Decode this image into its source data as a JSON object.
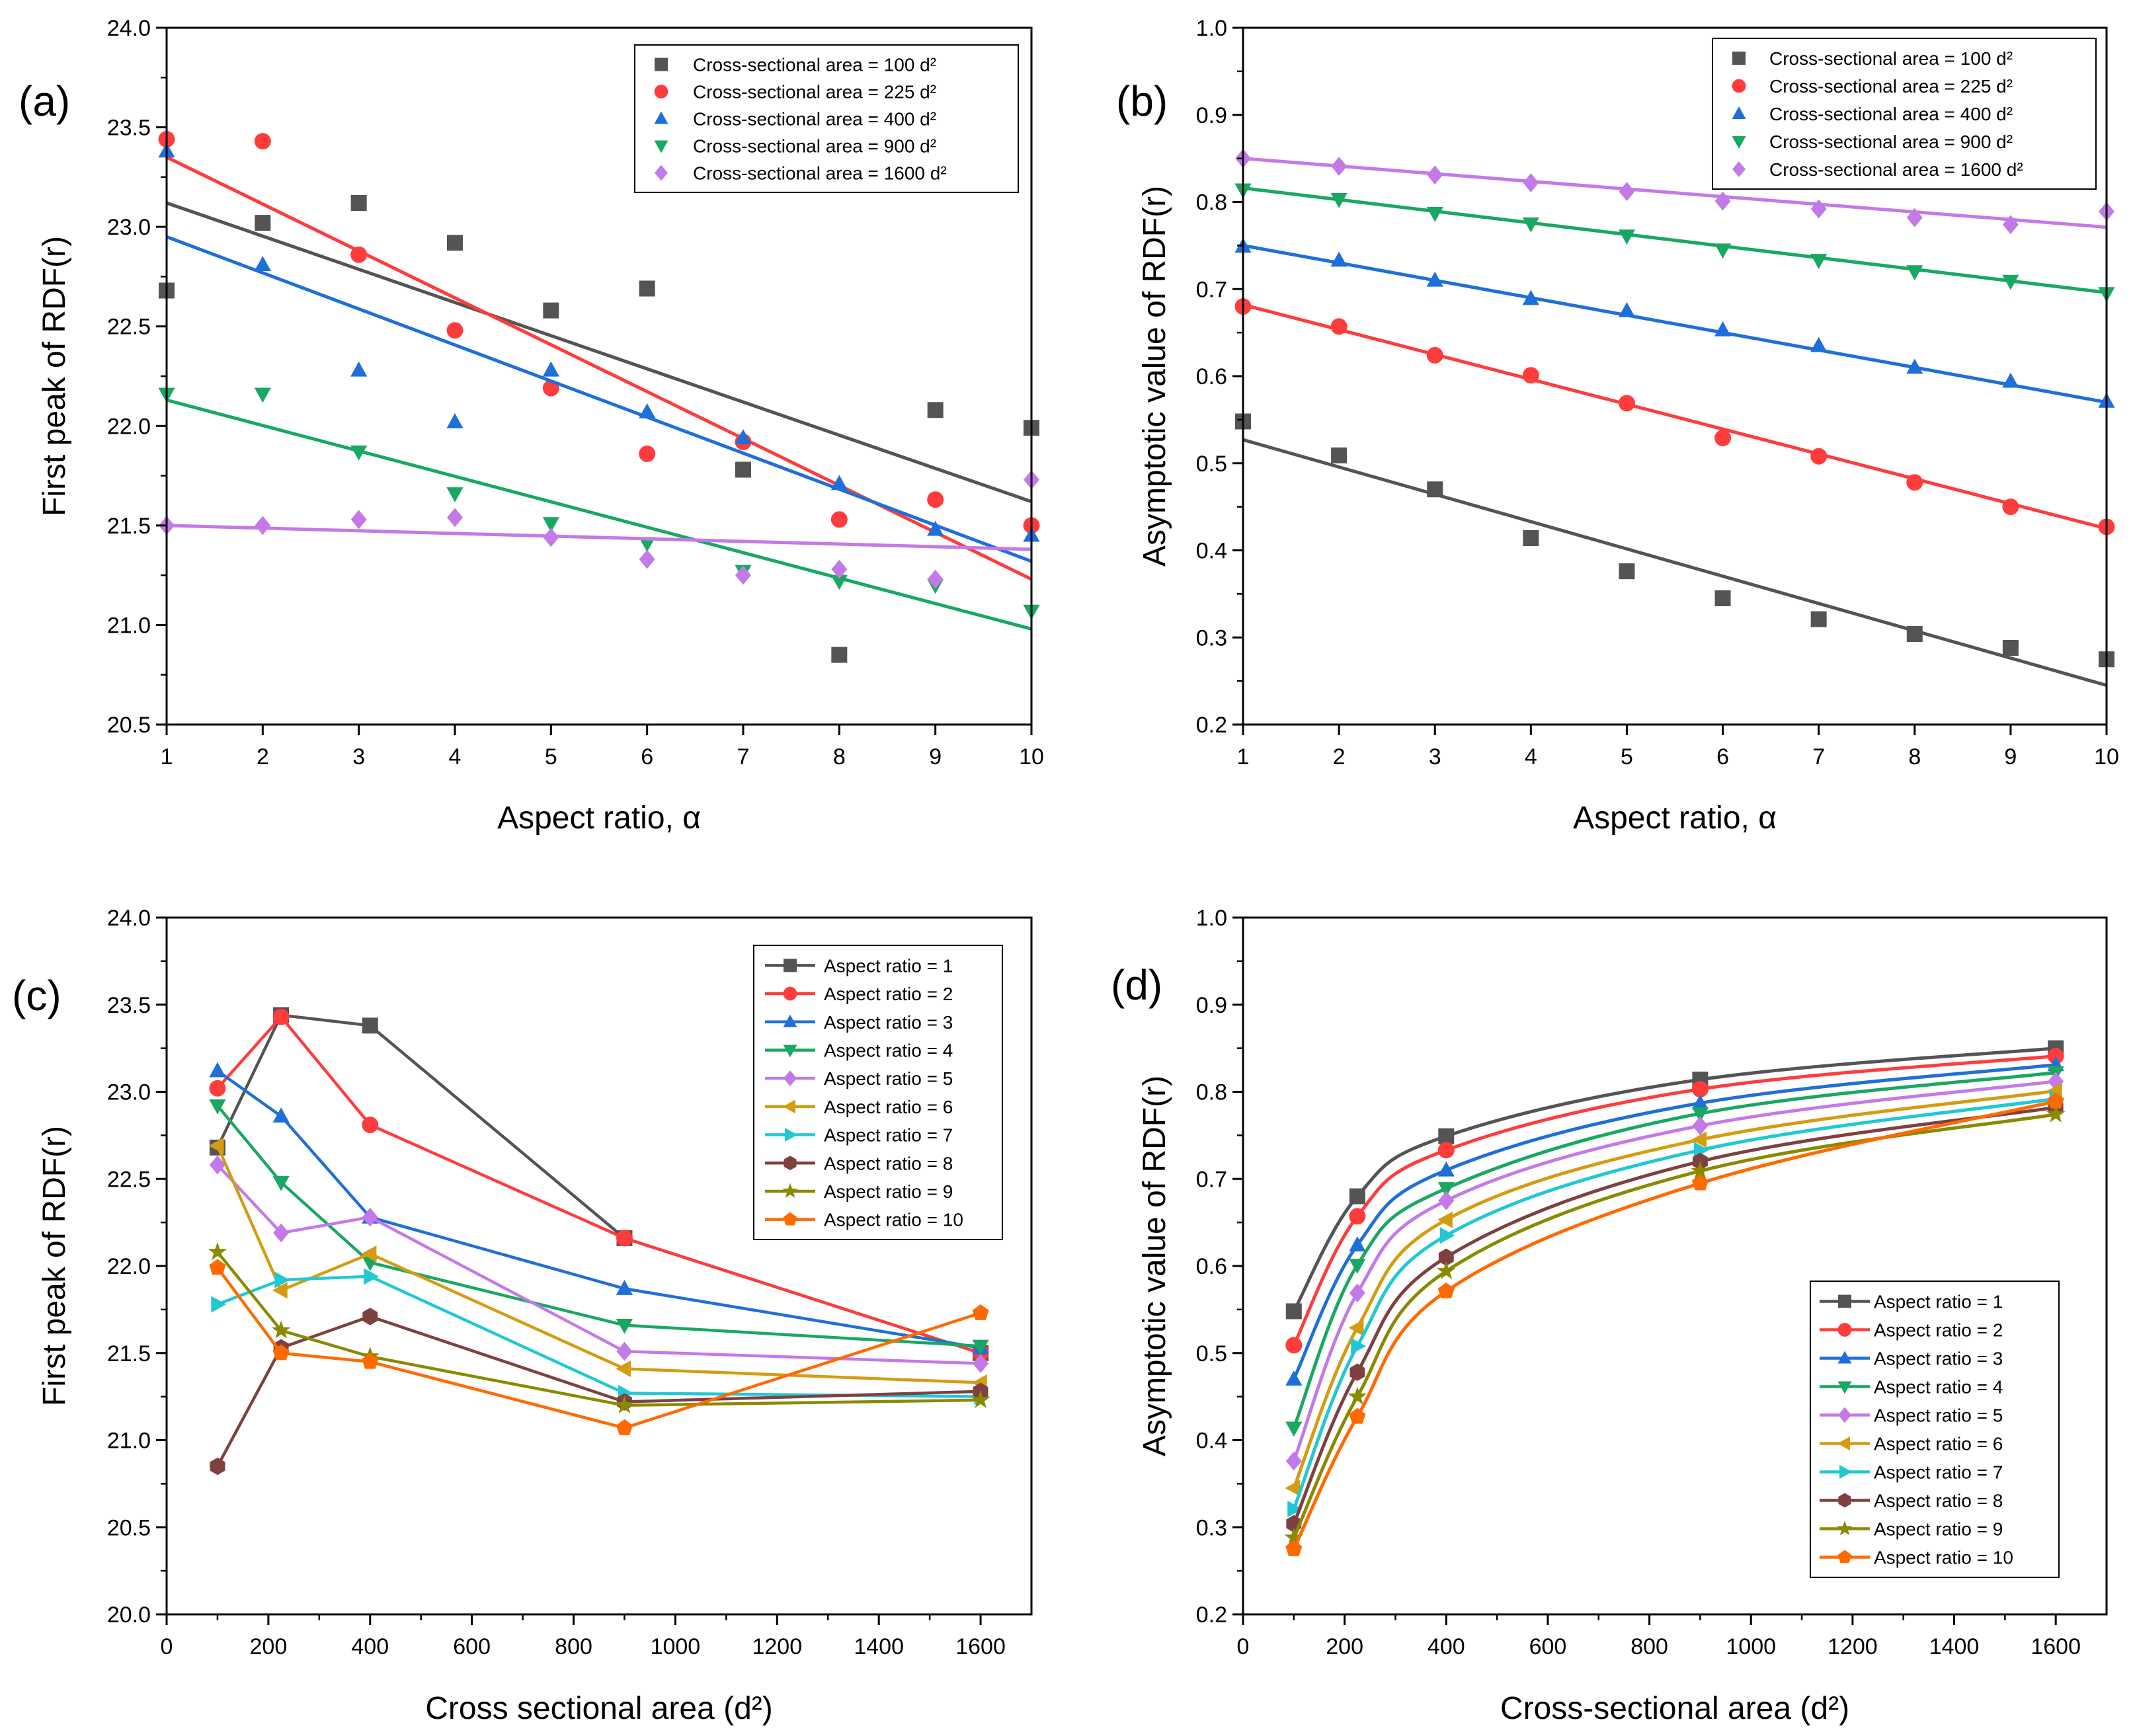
{
  "figure_colors": [
    "#545454",
    "#ff3c3c",
    "#1f6fd9",
    "#19a862",
    "#c479e8",
    "#d49c12",
    "#20c8d4",
    "#7f4040",
    "#8a8a00",
    "#ff6a00"
  ],
  "chart_data": [
    {
      "panel": "(a)",
      "type": "scatter",
      "xlabel": "Aspect ratio, α",
      "ylabel": "First peak of RDF(r)",
      "xlim": [
        1,
        10
      ],
      "ylim": [
        20.5,
        24.0
      ],
      "xticks": [
        "1",
        "2",
        "3",
        "4",
        "5",
        "6",
        "7",
        "8",
        "9",
        "10"
      ],
      "yticks": [
        "20.5",
        "21.0",
        "21.5",
        "22.0",
        "22.5",
        "23.0",
        "23.5",
        "24.0"
      ],
      "legend": "top-right",
      "x": [
        1,
        2,
        3,
        4,
        5,
        6,
        7,
        8,
        9,
        10
      ],
      "series": [
        {
          "name": "Cross-sectional area = 100 d²",
          "marker": "square",
          "values": [
            22.68,
            23.02,
            23.12,
            22.92,
            22.58,
            22.69,
            21.78,
            20.85,
            22.08,
            21.99
          ],
          "fit": [
            23.12,
            21.62
          ]
        },
        {
          "name": "Cross-sectional area = 225 d²",
          "marker": "circle",
          "values": [
            23.44,
            23.43,
            22.86,
            22.48,
            22.19,
            21.86,
            21.92,
            21.53,
            21.63,
            21.5
          ],
          "fit": [
            23.35,
            21.23
          ]
        },
        {
          "name": "Cross-sectional area = 400 d²",
          "marker": "triangle-up",
          "values": [
            23.38,
            22.81,
            22.28,
            22.02,
            22.28,
            22.07,
            21.94,
            21.71,
            21.48,
            21.45
          ],
          "fit": [
            22.95,
            21.32
          ]
        },
        {
          "name": "Cross-sectional area = 900 d²",
          "marker": "triangle-down",
          "values": [
            22.16,
            22.16,
            21.87,
            21.66,
            21.51,
            21.41,
            21.27,
            21.22,
            21.2,
            21.07
          ],
          "fit": [
            22.13,
            20.98
          ]
        },
        {
          "name": "Cross-sectional area = 1600 d²",
          "marker": "diamond",
          "values": [
            21.5,
            21.5,
            21.53,
            21.54,
            21.44,
            21.33,
            21.25,
            21.28,
            21.23,
            21.73
          ],
          "fit": [
            21.5,
            21.38
          ]
        }
      ]
    },
    {
      "panel": "(b)",
      "type": "scatter",
      "xlabel": "Aspect ratio, α",
      "ylabel": "Asymptotic value of RDF(r)",
      "xlim": [
        1,
        10
      ],
      "ylim": [
        0.2,
        1.0
      ],
      "xticks": [
        "1",
        "2",
        "3",
        "4",
        "5",
        "6",
        "7",
        "8",
        "9",
        "10"
      ],
      "yticks": [
        "0.2",
        "0.3",
        "0.4",
        "0.5",
        "0.6",
        "0.7",
        "0.8",
        "0.9",
        "1.0"
      ],
      "legend": "top-right",
      "x": [
        1,
        2,
        3,
        4,
        5,
        6,
        7,
        8,
        9,
        10
      ],
      "series": [
        {
          "name": "Cross-sectional area = 100 d²",
          "marker": "square",
          "values": [
            0.548,
            0.509,
            0.47,
            0.414,
            0.376,
            0.345,
            0.321,
            0.304,
            0.288,
            0.275
          ],
          "fit": [
            0.527,
            0.245
          ]
        },
        {
          "name": "Cross-sectional area = 225 d²",
          "marker": "circle",
          "values": [
            0.68,
            0.657,
            0.624,
            0.601,
            0.569,
            0.529,
            0.508,
            0.478,
            0.45,
            0.427
          ],
          "fit": [
            0.682,
            0.425
          ]
        },
        {
          "name": "Cross-sectional area = 400 d²",
          "marker": "triangle-up",
          "values": [
            0.749,
            0.733,
            0.71,
            0.689,
            0.675,
            0.653,
            0.635,
            0.61,
            0.594,
            0.571
          ],
          "fit": [
            0.75,
            0.57
          ]
        },
        {
          "name": "Cross-sectional area = 900 d²",
          "marker": "triangle-down",
          "values": [
            0.814,
            0.803,
            0.787,
            0.775,
            0.761,
            0.745,
            0.733,
            0.72,
            0.709,
            0.695
          ],
          "fit": [
            0.816,
            0.696
          ]
        },
        {
          "name": "Cross-sectional area = 1600 d²",
          "marker": "diamond",
          "values": [
            0.85,
            0.841,
            0.831,
            0.822,
            0.812,
            0.801,
            0.792,
            0.782,
            0.774,
            0.789
          ],
          "fit": [
            0.85,
            0.771
          ]
        }
      ]
    },
    {
      "panel": "(c)",
      "type": "line",
      "xlabel": "Cross sectional area (d²)",
      "ylabel": "First peak of RDF(r)",
      "xlim": [
        0,
        1700
      ],
      "ylim": [
        20.0,
        24.0
      ],
      "xticks": [
        "0",
        "200",
        "400",
        "600",
        "800",
        "1000",
        "1200",
        "1400",
        "1600"
      ],
      "yticks": [
        "20.0",
        "20.5",
        "21.0",
        "21.5",
        "22.0",
        "22.5",
        "23.0",
        "23.5",
        "24.0"
      ],
      "legend": "top-right",
      "x": [
        100,
        225,
        400,
        900,
        1600
      ],
      "series": [
        {
          "name": "Aspect ratio = 1",
          "marker": "square",
          "values": [
            22.68,
            23.44,
            23.38,
            22.16,
            21.5
          ]
        },
        {
          "name": "Aspect ratio = 2",
          "marker": "circle",
          "values": [
            23.02,
            23.43,
            22.81,
            22.16,
            21.5
          ]
        },
        {
          "name": "Aspect ratio = 3",
          "marker": "triangle-up",
          "values": [
            23.12,
            22.86,
            22.28,
            21.87,
            21.53
          ]
        },
        {
          "name": "Aspect ratio = 4",
          "marker": "triangle-down",
          "values": [
            22.92,
            22.48,
            22.02,
            21.66,
            21.54
          ]
        },
        {
          "name": "Aspect ratio = 5",
          "marker": "diamond",
          "values": [
            22.58,
            22.19,
            22.28,
            21.51,
            21.44
          ]
        },
        {
          "name": "Aspect ratio = 6",
          "marker": "triangle-left",
          "values": [
            22.69,
            21.86,
            22.07,
            21.41,
            21.33
          ]
        },
        {
          "name": "Aspect ratio = 7",
          "marker": "triangle-right",
          "values": [
            21.78,
            21.92,
            21.94,
            21.27,
            21.25
          ]
        },
        {
          "name": "Aspect ratio = 8",
          "marker": "hexagon",
          "values": [
            20.85,
            21.53,
            21.71,
            21.22,
            21.28
          ]
        },
        {
          "name": "Aspect ratio = 9",
          "marker": "star",
          "values": [
            22.08,
            21.63,
            21.48,
            21.2,
            21.23
          ]
        },
        {
          "name": "Aspect ratio = 10",
          "marker": "pentagon",
          "values": [
            21.99,
            21.5,
            21.45,
            21.07,
            21.73
          ]
        }
      ]
    },
    {
      "panel": "(d)",
      "type": "line",
      "xlabel": "Cross-sectional area (d²)",
      "ylabel": "Asymptotic value of RDF(r)",
      "xlim": [
        0,
        1700
      ],
      "ylim": [
        0.2,
        1.0
      ],
      "xticks": [
        "0",
        "200",
        "400",
        "600",
        "800",
        "1000",
        "1200",
        "1400",
        "1600"
      ],
      "yticks": [
        "0.2",
        "0.3",
        "0.4",
        "0.5",
        "0.6",
        "0.7",
        "0.8",
        "0.9",
        "1.0"
      ],
      "legend": "bottom-right",
      "x": [
        100,
        225,
        400,
        900,
        1600
      ],
      "series": [
        {
          "name": "Aspect ratio = 1",
          "marker": "square",
          "values": [
            0.548,
            0.68,
            0.749,
            0.814,
            0.85
          ]
        },
        {
          "name": "Aspect ratio = 2",
          "marker": "circle",
          "values": [
            0.509,
            0.657,
            0.733,
            0.803,
            0.841
          ]
        },
        {
          "name": "Aspect ratio = 3",
          "marker": "triangle-up",
          "values": [
            0.47,
            0.624,
            0.71,
            0.787,
            0.831
          ]
        },
        {
          "name": "Aspect ratio = 4",
          "marker": "triangle-down",
          "values": [
            0.414,
            0.601,
            0.689,
            0.775,
            0.822
          ]
        },
        {
          "name": "Aspect ratio = 5",
          "marker": "diamond",
          "values": [
            0.376,
            0.569,
            0.675,
            0.761,
            0.812
          ]
        },
        {
          "name": "Aspect ratio = 6",
          "marker": "triangle-left",
          "values": [
            0.345,
            0.529,
            0.653,
            0.745,
            0.801
          ]
        },
        {
          "name": "Aspect ratio = 7",
          "marker": "triangle-right",
          "values": [
            0.321,
            0.508,
            0.635,
            0.733,
            0.792
          ]
        },
        {
          "name": "Aspect ratio = 8",
          "marker": "hexagon",
          "values": [
            0.304,
            0.478,
            0.61,
            0.72,
            0.782
          ]
        },
        {
          "name": "Aspect ratio = 9",
          "marker": "star",
          "values": [
            0.288,
            0.45,
            0.594,
            0.709,
            0.774
          ]
        },
        {
          "name": "Aspect ratio = 10",
          "marker": "pentagon",
          "values": [
            0.275,
            0.427,
            0.571,
            0.695,
            0.789
          ]
        }
      ]
    }
  ]
}
